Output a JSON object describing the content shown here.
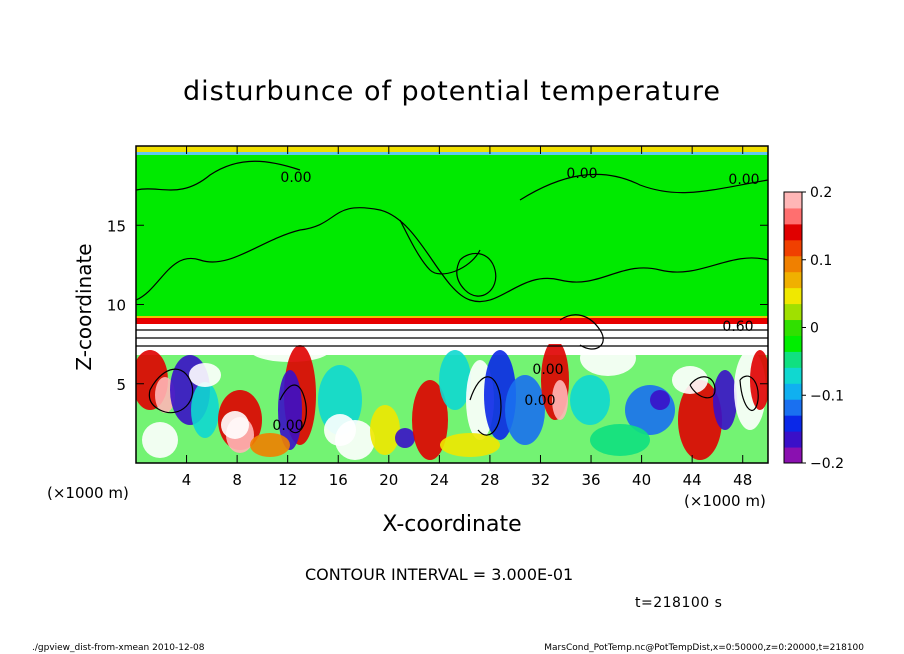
{
  "chart_data": {
    "type": "heatmap",
    "title": "disturbunce of potential temperature",
    "xlabel": "X-coordinate",
    "ylabel": "Z-coordinate",
    "x_unit": "(×1000 m)",
    "y_unit": "(×1000 m)",
    "xlim": [
      0,
      50
    ],
    "ylim": [
      0,
      20
    ],
    "x_ticks": [
      4,
      8,
      12,
      16,
      20,
      24,
      28,
      32,
      36,
      40,
      44,
      48
    ],
    "y_ticks": [
      5,
      10,
      15
    ],
    "colorbar": {
      "range": [
        -0.2,
        0.2
      ],
      "ticks": [
        "0.2",
        "0.1",
        "0",
        "−0.1",
        "−0.2"
      ],
      "colors": [
        "#8a10b0",
        "#3a10c8",
        "#0a28e8",
        "#1a70f0",
        "#10b0f0",
        "#10d8d0",
        "#10e080",
        "#00ee00",
        "#30e000",
        "#a0e000",
        "#f0e800",
        "#f0b000",
        "#f08000",
        "#f04000",
        "#e00000",
        "#ff6f6f",
        "#ffb6b6"
      ]
    },
    "contour_labels": [
      "0.00",
      "0.00",
      "0.00",
      "0.60",
      "0.00",
      "0.00",
      "0.00"
    ]
  },
  "contour_interval": "CONTOUR INTERVAL = 3.000E-01",
  "time_label": "t=218100 s",
  "footer_left": "./gpview_dist-from-xmean  2010-12-08",
  "footer_right": "MarsCond_PotTemp.nc@PotTempDist,x=0:50000,z=0:20000,t=218100"
}
